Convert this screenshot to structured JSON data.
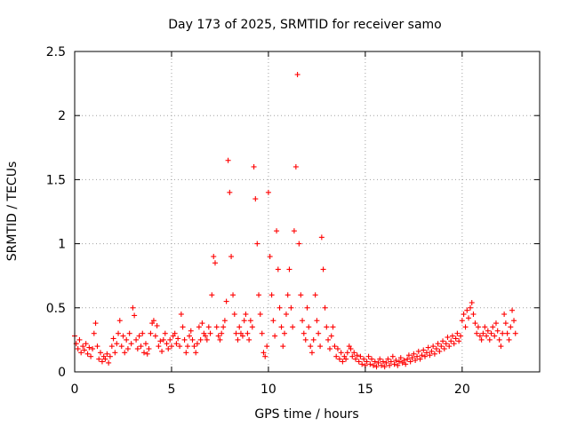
{
  "chart_data": {
    "type": "scatter",
    "title": "Day 173 of 2025, SRMTID for receiver samo",
    "xlabel": "GPS time / hours",
    "ylabel": "SRMTID / TECUs",
    "xlim": [
      0,
      24
    ],
    "ylim": [
      0,
      2.5
    ],
    "xticks": [
      0,
      5,
      10,
      15,
      20
    ],
    "xtick_labels": [
      "0",
      "5",
      "10",
      "15",
      "20"
    ],
    "yticks": [
      0,
      0.5,
      1,
      1.5,
      2,
      2.5
    ],
    "ytick_labels": [
      "0",
      "0.5",
      "1",
      "1.5",
      "2",
      "2.5"
    ],
    "grid": true,
    "marker": "+",
    "series": [
      {
        "name": "samo",
        "color": "#ff0000",
        "points": [
          [
            0.0,
            0.28
          ],
          [
            0.08,
            0.22
          ],
          [
            0.17,
            0.18
          ],
          [
            0.25,
            0.25
          ],
          [
            0.33,
            0.15
          ],
          [
            0.42,
            0.2
          ],
          [
            0.5,
            0.17
          ],
          [
            0.58,
            0.22
          ],
          [
            0.67,
            0.14
          ],
          [
            0.75,
            0.19
          ],
          [
            0.83,
            0.12
          ],
          [
            0.92,
            0.18
          ],
          [
            1.0,
            0.3
          ],
          [
            1.08,
            0.38
          ],
          [
            1.17,
            0.2
          ],
          [
            1.25,
            0.1
          ],
          [
            1.33,
            0.15
          ],
          [
            1.42,
            0.08
          ],
          [
            1.5,
            0.12
          ],
          [
            1.58,
            0.1
          ],
          [
            1.67,
            0.14
          ],
          [
            1.75,
            0.07
          ],
          [
            1.83,
            0.12
          ],
          [
            1.92,
            0.2
          ],
          [
            2.0,
            0.26
          ],
          [
            2.08,
            0.15
          ],
          [
            2.17,
            0.22
          ],
          [
            2.25,
            0.3
          ],
          [
            2.33,
            0.4
          ],
          [
            2.42,
            0.2
          ],
          [
            2.5,
            0.28
          ],
          [
            2.58,
            0.15
          ],
          [
            2.67,
            0.25
          ],
          [
            2.75,
            0.18
          ],
          [
            2.83,
            0.3
          ],
          [
            2.92,
            0.22
          ],
          [
            3.0,
            0.5
          ],
          [
            3.08,
            0.44
          ],
          [
            3.17,
            0.25
          ],
          [
            3.25,
            0.18
          ],
          [
            3.33,
            0.28
          ],
          [
            3.42,
            0.2
          ],
          [
            3.5,
            0.3
          ],
          [
            3.58,
            0.15
          ],
          [
            3.67,
            0.22
          ],
          [
            3.75,
            0.14
          ],
          [
            3.83,
            0.18
          ],
          [
            3.92,
            0.3
          ],
          [
            4.0,
            0.38
          ],
          [
            4.08,
            0.4
          ],
          [
            4.17,
            0.28
          ],
          [
            4.25,
            0.36
          ],
          [
            4.33,
            0.2
          ],
          [
            4.42,
            0.24
          ],
          [
            4.5,
            0.16
          ],
          [
            4.58,
            0.25
          ],
          [
            4.67,
            0.3
          ],
          [
            4.75,
            0.22
          ],
          [
            4.83,
            0.18
          ],
          [
            4.92,
            0.25
          ],
          [
            5.0,
            0.2
          ],
          [
            5.08,
            0.28
          ],
          [
            5.17,
            0.3
          ],
          [
            5.25,
            0.22
          ],
          [
            5.33,
            0.26
          ],
          [
            5.42,
            0.2
          ],
          [
            5.5,
            0.45
          ],
          [
            5.58,
            0.35
          ],
          [
            5.67,
            0.25
          ],
          [
            5.75,
            0.15
          ],
          [
            5.83,
            0.2
          ],
          [
            5.92,
            0.28
          ],
          [
            6.0,
            0.32
          ],
          [
            6.08,
            0.25
          ],
          [
            6.17,
            0.2
          ],
          [
            6.25,
            0.15
          ],
          [
            6.33,
            0.22
          ],
          [
            6.42,
            0.35
          ],
          [
            6.5,
            0.25
          ],
          [
            6.58,
            0.38
          ],
          [
            6.67,
            0.3
          ],
          [
            6.75,
            0.28
          ],
          [
            6.83,
            0.25
          ],
          [
            6.92,
            0.35
          ],
          [
            7.0,
            0.3
          ],
          [
            7.08,
            0.6
          ],
          [
            7.17,
            0.9
          ],
          [
            7.25,
            0.85
          ],
          [
            7.33,
            0.35
          ],
          [
            7.42,
            0.28
          ],
          [
            7.5,
            0.25
          ],
          [
            7.58,
            0.3
          ],
          [
            7.67,
            0.35
          ],
          [
            7.75,
            0.4
          ],
          [
            7.83,
            0.55
          ],
          [
            7.92,
            1.65
          ],
          [
            8.0,
            1.4
          ],
          [
            8.08,
            0.9
          ],
          [
            8.17,
            0.6
          ],
          [
            8.25,
            0.45
          ],
          [
            8.33,
            0.3
          ],
          [
            8.42,
            0.25
          ],
          [
            8.5,
            0.35
          ],
          [
            8.58,
            0.3
          ],
          [
            8.67,
            0.28
          ],
          [
            8.75,
            0.4
          ],
          [
            8.83,
            0.45
          ],
          [
            8.92,
            0.3
          ],
          [
            9.0,
            0.25
          ],
          [
            9.08,
            0.4
          ],
          [
            9.17,
            0.35
          ],
          [
            9.25,
            1.6
          ],
          [
            9.33,
            1.35
          ],
          [
            9.42,
            1.0
          ],
          [
            9.5,
            0.6
          ],
          [
            9.58,
            0.45
          ],
          [
            9.67,
            0.3
          ],
          [
            9.75,
            0.15
          ],
          [
            9.83,
            0.12
          ],
          [
            9.92,
            0.2
          ],
          [
            10.0,
            1.4
          ],
          [
            10.08,
            0.9
          ],
          [
            10.17,
            0.6
          ],
          [
            10.25,
            0.4
          ],
          [
            10.33,
            0.28
          ],
          [
            10.42,
            1.1
          ],
          [
            10.5,
            0.8
          ],
          [
            10.58,
            0.5
          ],
          [
            10.67,
            0.35
          ],
          [
            10.75,
            0.2
          ],
          [
            10.83,
            0.3
          ],
          [
            10.92,
            0.45
          ],
          [
            11.0,
            0.6
          ],
          [
            11.08,
            0.8
          ],
          [
            11.17,
            0.5
          ],
          [
            11.25,
            0.35
          ],
          [
            11.33,
            1.1
          ],
          [
            11.42,
            1.6
          ],
          [
            11.5,
            2.32
          ],
          [
            11.58,
            1.0
          ],
          [
            11.67,
            0.6
          ],
          [
            11.75,
            0.4
          ],
          [
            11.83,
            0.3
          ],
          [
            11.92,
            0.25
          ],
          [
            12.0,
            0.5
          ],
          [
            12.08,
            0.35
          ],
          [
            12.17,
            0.2
          ],
          [
            12.25,
            0.15
          ],
          [
            12.33,
            0.25
          ],
          [
            12.42,
            0.6
          ],
          [
            12.5,
            0.4
          ],
          [
            12.58,
            0.3
          ],
          [
            12.67,
            0.2
          ],
          [
            12.75,
            1.05
          ],
          [
            12.83,
            0.8
          ],
          [
            12.92,
            0.5
          ],
          [
            13.0,
            0.35
          ],
          [
            13.08,
            0.25
          ],
          [
            13.17,
            0.18
          ],
          [
            13.25,
            0.28
          ],
          [
            13.33,
            0.35
          ],
          [
            13.42,
            0.2
          ],
          [
            13.5,
            0.12
          ],
          [
            13.58,
            0.18
          ],
          [
            13.67,
            0.1
          ],
          [
            13.75,
            0.15
          ],
          [
            13.83,
            0.08
          ],
          [
            13.92,
            0.12
          ],
          [
            14.0,
            0.1
          ],
          [
            14.08,
            0.15
          ],
          [
            14.17,
            0.2
          ],
          [
            14.25,
            0.18
          ],
          [
            14.33,
            0.12
          ],
          [
            14.42,
            0.15
          ],
          [
            14.5,
            0.1
          ],
          [
            14.58,
            0.13
          ],
          [
            14.67,
            0.08
          ],
          [
            14.75,
            0.12
          ],
          [
            14.83,
            0.06
          ],
          [
            14.92,
            0.1
          ],
          [
            15.0,
            0.05
          ],
          [
            15.08,
            0.08
          ],
          [
            15.17,
            0.12
          ],
          [
            15.25,
            0.06
          ],
          [
            15.33,
            0.1
          ],
          [
            15.42,
            0.05
          ],
          [
            15.5,
            0.08
          ],
          [
            15.58,
            0.04
          ],
          [
            15.67,
            0.07
          ],
          [
            15.75,
            0.1
          ],
          [
            15.83,
            0.05
          ],
          [
            15.92,
            0.08
          ],
          [
            16.0,
            0.04
          ],
          [
            16.08,
            0.07
          ],
          [
            16.17,
            0.1
          ],
          [
            16.25,
            0.05
          ],
          [
            16.33,
            0.08
          ],
          [
            16.42,
            0.12
          ],
          [
            16.5,
            0.06
          ],
          [
            16.58,
            0.09
          ],
          [
            16.67,
            0.05
          ],
          [
            16.75,
            0.08
          ],
          [
            16.83,
            0.11
          ],
          [
            16.92,
            0.07
          ],
          [
            17.0,
            0.09
          ],
          [
            17.08,
            0.06
          ],
          [
            17.17,
            0.1
          ],
          [
            17.25,
            0.13
          ],
          [
            17.33,
            0.08
          ],
          [
            17.42,
            0.11
          ],
          [
            17.5,
            0.14
          ],
          [
            17.58,
            0.09
          ],
          [
            17.67,
            0.12
          ],
          [
            17.75,
            0.16
          ],
          [
            17.83,
            0.1
          ],
          [
            17.92,
            0.13
          ],
          [
            18.0,
            0.17
          ],
          [
            18.08,
            0.12
          ],
          [
            18.17,
            0.15
          ],
          [
            18.25,
            0.19
          ],
          [
            18.33,
            0.13
          ],
          [
            18.42,
            0.16
          ],
          [
            18.5,
            0.2
          ],
          [
            18.58,
            0.14
          ],
          [
            18.67,
            0.18
          ],
          [
            18.75,
            0.22
          ],
          [
            18.83,
            0.16
          ],
          [
            18.92,
            0.2
          ],
          [
            19.0,
            0.24
          ],
          [
            19.08,
            0.18
          ],
          [
            19.17,
            0.22
          ],
          [
            19.25,
            0.27
          ],
          [
            19.33,
            0.2
          ],
          [
            19.42,
            0.24
          ],
          [
            19.5,
            0.28
          ],
          [
            19.58,
            0.22
          ],
          [
            19.67,
            0.26
          ],
          [
            19.75,
            0.3
          ],
          [
            19.83,
            0.24
          ],
          [
            19.92,
            0.28
          ],
          [
            20.0,
            0.4
          ],
          [
            20.08,
            0.45
          ],
          [
            20.17,
            0.35
          ],
          [
            20.25,
            0.48
          ],
          [
            20.33,
            0.42
          ],
          [
            20.42,
            0.5
          ],
          [
            20.5,
            0.54
          ],
          [
            20.58,
            0.45
          ],
          [
            20.67,
            0.38
          ],
          [
            20.75,
            0.3
          ],
          [
            20.83,
            0.35
          ],
          [
            20.92,
            0.28
          ],
          [
            21.0,
            0.25
          ],
          [
            21.08,
            0.3
          ],
          [
            21.17,
            0.35
          ],
          [
            21.25,
            0.28
          ],
          [
            21.33,
            0.32
          ],
          [
            21.42,
            0.25
          ],
          [
            21.5,
            0.3
          ],
          [
            21.58,
            0.35
          ],
          [
            21.67,
            0.28
          ],
          [
            21.75,
            0.38
          ],
          [
            21.83,
            0.32
          ],
          [
            21.92,
            0.25
          ],
          [
            22.0,
            0.2
          ],
          [
            22.08,
            0.3
          ],
          [
            22.17,
            0.45
          ],
          [
            22.25,
            0.38
          ],
          [
            22.33,
            0.3
          ],
          [
            22.42,
            0.25
          ],
          [
            22.5,
            0.35
          ],
          [
            22.58,
            0.48
          ],
          [
            22.67,
            0.4
          ],
          [
            22.75,
            0.3
          ]
        ]
      }
    ]
  }
}
